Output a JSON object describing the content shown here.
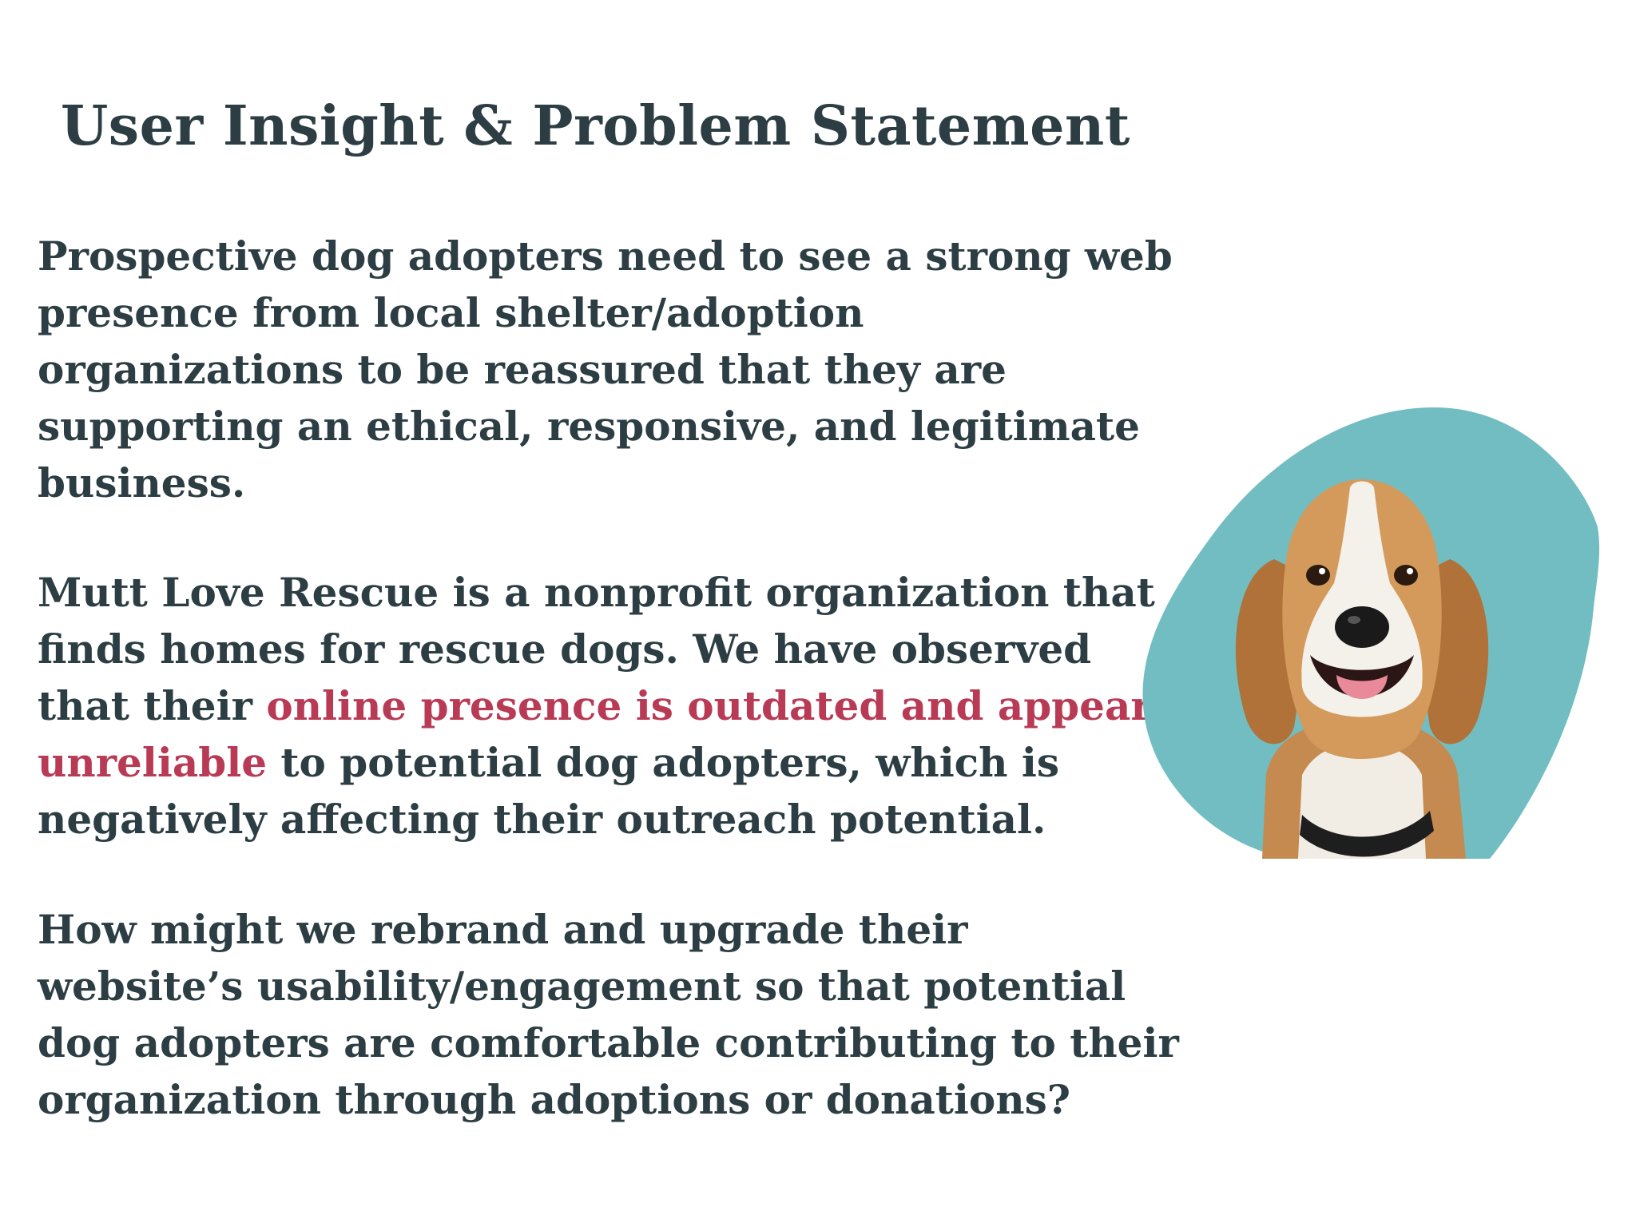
{
  "title": "User Insight & Problem Statement",
  "paragraph1": {
    "lines": [
      "Prospective dog adopters need to see a strong web",
      "presence from local shelter/adoption",
      "organizations to be reassured that they are",
      "supporting an ethical, responsive, and legitimate",
      "business."
    ]
  },
  "paragraph2": {
    "line1": "Mutt Love Rescue is a nonprofit organization that",
    "line2": "finds homes for rescue dogs. We have observed",
    "line3_prefix": "that their ",
    "line3_highlight": "online presence is outdated and appears",
    "line4_highlight": "unreliable",
    "line4_suffix": " to potential dog adopters, which is",
    "line5": "negatively affecting their outreach potential."
  },
  "paragraph3": {
    "lines": [
      "How might we rebrand and upgrade their",
      "website’s usability/engagement so that potential",
      "dog adopters are comfortable contributing to their",
      "organization through adoptions or donations?"
    ]
  },
  "colors": {
    "text": "#2c3e43",
    "highlight": "#b93a55",
    "blob": "#72bdc2"
  },
  "illustration": {
    "icon": "beagle-dog-icon"
  }
}
